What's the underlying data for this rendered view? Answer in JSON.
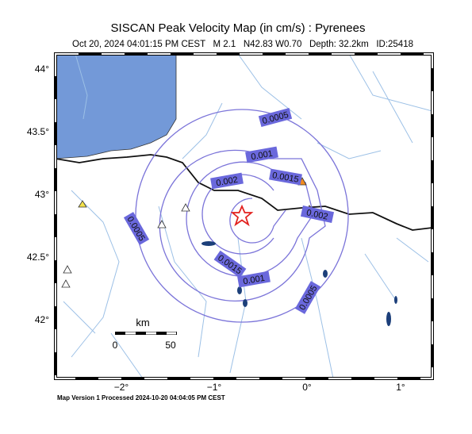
{
  "header": {
    "title": "SISCAN Peak Velocity Map (in cm/s) : Pyrenees",
    "subtitle": "Oct 20, 2024 04:01:15 PM CEST   M 2.1   N42.83 W0.70   Depth: 32.2km   ID:25418"
  },
  "map": {
    "lat_labels": [
      "44°",
      "43.5°",
      "43°",
      "42.5°",
      "42°"
    ],
    "lon_labels": [
      "−2°",
      "−1°",
      "0°",
      "1°"
    ],
    "contour_labels": [
      "0.0005",
      "0.001",
      "0.0015",
      "0.002",
      "0.0005",
      "0.0015",
      "0.001",
      "0.002",
      "0.0005"
    ],
    "scale_bar": {
      "unit": "km",
      "start": "0",
      "end": "50"
    }
  },
  "footer": "Map Version 1 Processed 2024-10-20 04:04:05 PM CEST"
}
